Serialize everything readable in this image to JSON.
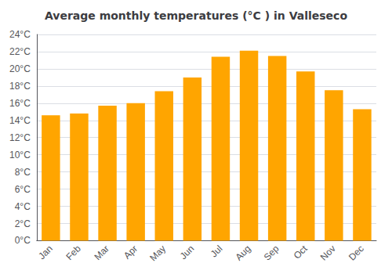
{
  "chart_data": {
    "type": "bar",
    "title": "Average monthly temperatures (°C ) in Valleseco",
    "categories": [
      "Jan",
      "Feb",
      "Mar",
      "Apr",
      "May",
      "Jun",
      "Jul",
      "Aug",
      "Sep",
      "Oct",
      "Nov",
      "Dec"
    ],
    "values": [
      14.6,
      14.8,
      15.7,
      16.0,
      17.4,
      19.0,
      21.4,
      22.1,
      21.5,
      19.7,
      17.5,
      15.3
    ],
    "color": "#FFA500",
    "ylim": [
      0,
      24
    ],
    "yticks": [
      {
        "value": 0,
        "label": "0°C"
      },
      {
        "value": 2,
        "label": "2°C"
      },
      {
        "value": 4,
        "label": "4°C"
      },
      {
        "value": 6,
        "label": "6°C"
      },
      {
        "value": 8,
        "label": "8°C"
      },
      {
        "value": 10,
        "label": "10°C"
      },
      {
        "value": 12,
        "label": "12°C"
      },
      {
        "value": 14,
        "label": "14°C"
      },
      {
        "value": 16,
        "label": "16°C"
      },
      {
        "value": 18,
        "label": "18°C"
      },
      {
        "value": 20,
        "label": "20°C"
      },
      {
        "value": 22,
        "label": "22°C"
      },
      {
        "value": 24,
        "label": "24°C"
      }
    ],
    "grid": true
  }
}
